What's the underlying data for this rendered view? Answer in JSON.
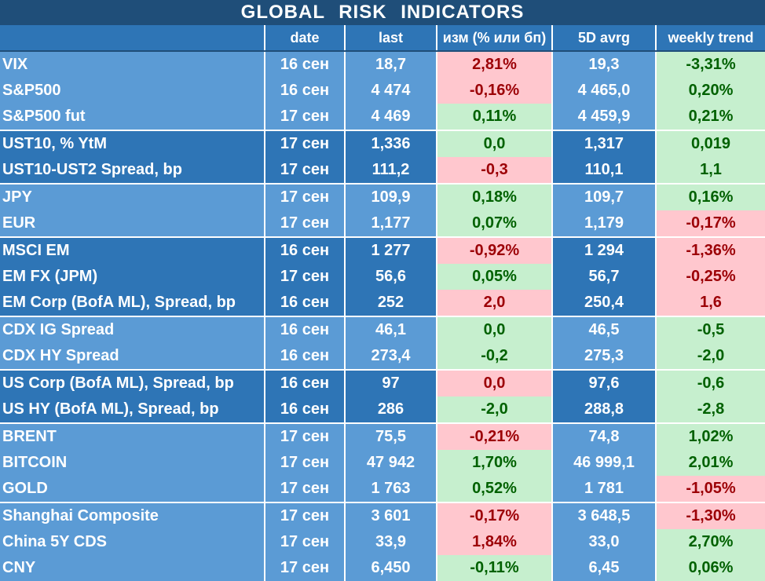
{
  "title": "GLOBAL   RISK   INDICATORS",
  "columns": [
    "",
    "date",
    "last",
    "изм (% или бп)",
    "5D avrg",
    "weekly trend"
  ],
  "colors": {
    "light_group": "#5b9bd5",
    "dark_group": "#2e75b6",
    "positive_bg": "#c6efce",
    "positive_text": "#006100",
    "negative_bg": "#ffc7ce",
    "negative_text": "#9c0006"
  },
  "groups": [
    {
      "shade": "light",
      "rows": [
        {
          "name": "VIX",
          "date": "16 сен",
          "last": "18,7",
          "chg": "2,81%",
          "chg_sign": "neg",
          "avg": "19,3",
          "wk": "-3,31%",
          "wk_sign": "pos"
        },
        {
          "name": "S&P500",
          "date": "16 сен",
          "last": "4 474",
          "chg": "-0,16%",
          "chg_sign": "neg",
          "avg": "4 465,0",
          "wk": "0,20%",
          "wk_sign": "pos"
        },
        {
          "name": "S&P500 fut",
          "date": "17 сен",
          "last": "4 469",
          "chg": "0,11%",
          "chg_sign": "pos",
          "avg": "4 459,9",
          "wk": "0,21%",
          "wk_sign": "pos"
        }
      ]
    },
    {
      "shade": "dark",
      "rows": [
        {
          "name": "UST10, % YtM",
          "date": "17 сен",
          "last": "1,336",
          "chg": "0,0",
          "chg_sign": "pos",
          "avg": "1,317",
          "wk": "0,019",
          "wk_sign": "pos"
        },
        {
          "name": "UST10-UST2 Spread, bp",
          "date": "17 сен",
          "last": "111,2",
          "chg": "-0,3",
          "chg_sign": "neg",
          "avg": "110,1",
          "wk": "1,1",
          "wk_sign": "pos"
        }
      ]
    },
    {
      "shade": "light",
      "rows": [
        {
          "name": "JPY",
          "date": "17 сен",
          "last": "109,9",
          "chg": "0,18%",
          "chg_sign": "pos",
          "avg": "109,7",
          "wk": "0,16%",
          "wk_sign": "pos"
        },
        {
          "name": "EUR",
          "date": "17 сен",
          "last": "1,177",
          "chg": "0,07%",
          "chg_sign": "pos",
          "avg": "1,179",
          "wk": "-0,17%",
          "wk_sign": "neg"
        }
      ]
    },
    {
      "shade": "dark",
      "rows": [
        {
          "name": "MSCI EM",
          "date": "16 сен",
          "last": "1 277",
          "chg": "-0,92%",
          "chg_sign": "neg",
          "avg": "1 294",
          "wk": "-1,36%",
          "wk_sign": "neg"
        },
        {
          "name": "EM FX (JPM)",
          "date": "17 сен",
          "last": "56,6",
          "chg": "0,05%",
          "chg_sign": "pos",
          "avg": "56,7",
          "wk": "-0,25%",
          "wk_sign": "neg"
        },
        {
          "name": "EM Corp (BofA ML), Spread, bp",
          "date": "16 сен",
          "last": "252",
          "chg": "2,0",
          "chg_sign": "neg",
          "avg": "250,4",
          "wk": "1,6",
          "wk_sign": "neg"
        }
      ]
    },
    {
      "shade": "light",
      "rows": [
        {
          "name": "CDX IG Spread",
          "date": "16 сен",
          "last": "46,1",
          "chg": "0,0",
          "chg_sign": "pos",
          "avg": "46,5",
          "wk": "-0,5",
          "wk_sign": "pos"
        },
        {
          "name": "CDX HY Spread",
          "date": "16 сен",
          "last": "273,4",
          "chg": "-0,2",
          "chg_sign": "pos",
          "avg": "275,3",
          "wk": "-2,0",
          "wk_sign": "pos"
        }
      ]
    },
    {
      "shade": "dark",
      "rows": [
        {
          "name": "US Corp (BofA ML), Spread, bp",
          "date": "16 сен",
          "last": "97",
          "chg": "0,0",
          "chg_sign": "neg",
          "avg": "97,6",
          "wk": "-0,6",
          "wk_sign": "pos"
        },
        {
          "name": "US HY (BofA ML), Spread, bp",
          "date": "16 сен",
          "last": "286",
          "chg": "-2,0",
          "chg_sign": "pos",
          "avg": "288,8",
          "wk": "-2,8",
          "wk_sign": "pos"
        }
      ]
    },
    {
      "shade": "light",
      "rows": [
        {
          "name": "BRENT",
          "date": "17 сен",
          "last": "75,5",
          "chg": "-0,21%",
          "chg_sign": "neg",
          "avg": "74,8",
          "wk": "1,02%",
          "wk_sign": "pos"
        },
        {
          "name": "BITCOIN",
          "date": "17 сен",
          "last": "47 942",
          "chg": "1,70%",
          "chg_sign": "pos",
          "avg": "46 999,1",
          "wk": "2,01%",
          "wk_sign": "pos"
        },
        {
          "name": "GOLD",
          "date": "17 сен",
          "last": "1 763",
          "chg": "0,52%",
          "chg_sign": "pos",
          "avg": "1 781",
          "wk": "-1,05%",
          "wk_sign": "neg"
        }
      ]
    },
    {
      "shade": "light",
      "rows": [
        {
          "name": "Shanghai Composite",
          "date": "17 сен",
          "last": "3 601",
          "chg": "-0,17%",
          "chg_sign": "neg",
          "avg": "3 648,5",
          "wk": "-1,30%",
          "wk_sign": "neg"
        },
        {
          "name": "China 5Y CDS",
          "date": "17 сен",
          "last": "33,9",
          "chg": "1,84%",
          "chg_sign": "neg",
          "avg": "33,0",
          "wk": "2,70%",
          "wk_sign": "pos"
        },
        {
          "name": "CNY",
          "date": "17 сен",
          "last": "6,450",
          "chg": "-0,11%",
          "chg_sign": "pos",
          "avg": "6,45",
          "wk": "0,06%",
          "wk_sign": "pos"
        }
      ]
    }
  ]
}
